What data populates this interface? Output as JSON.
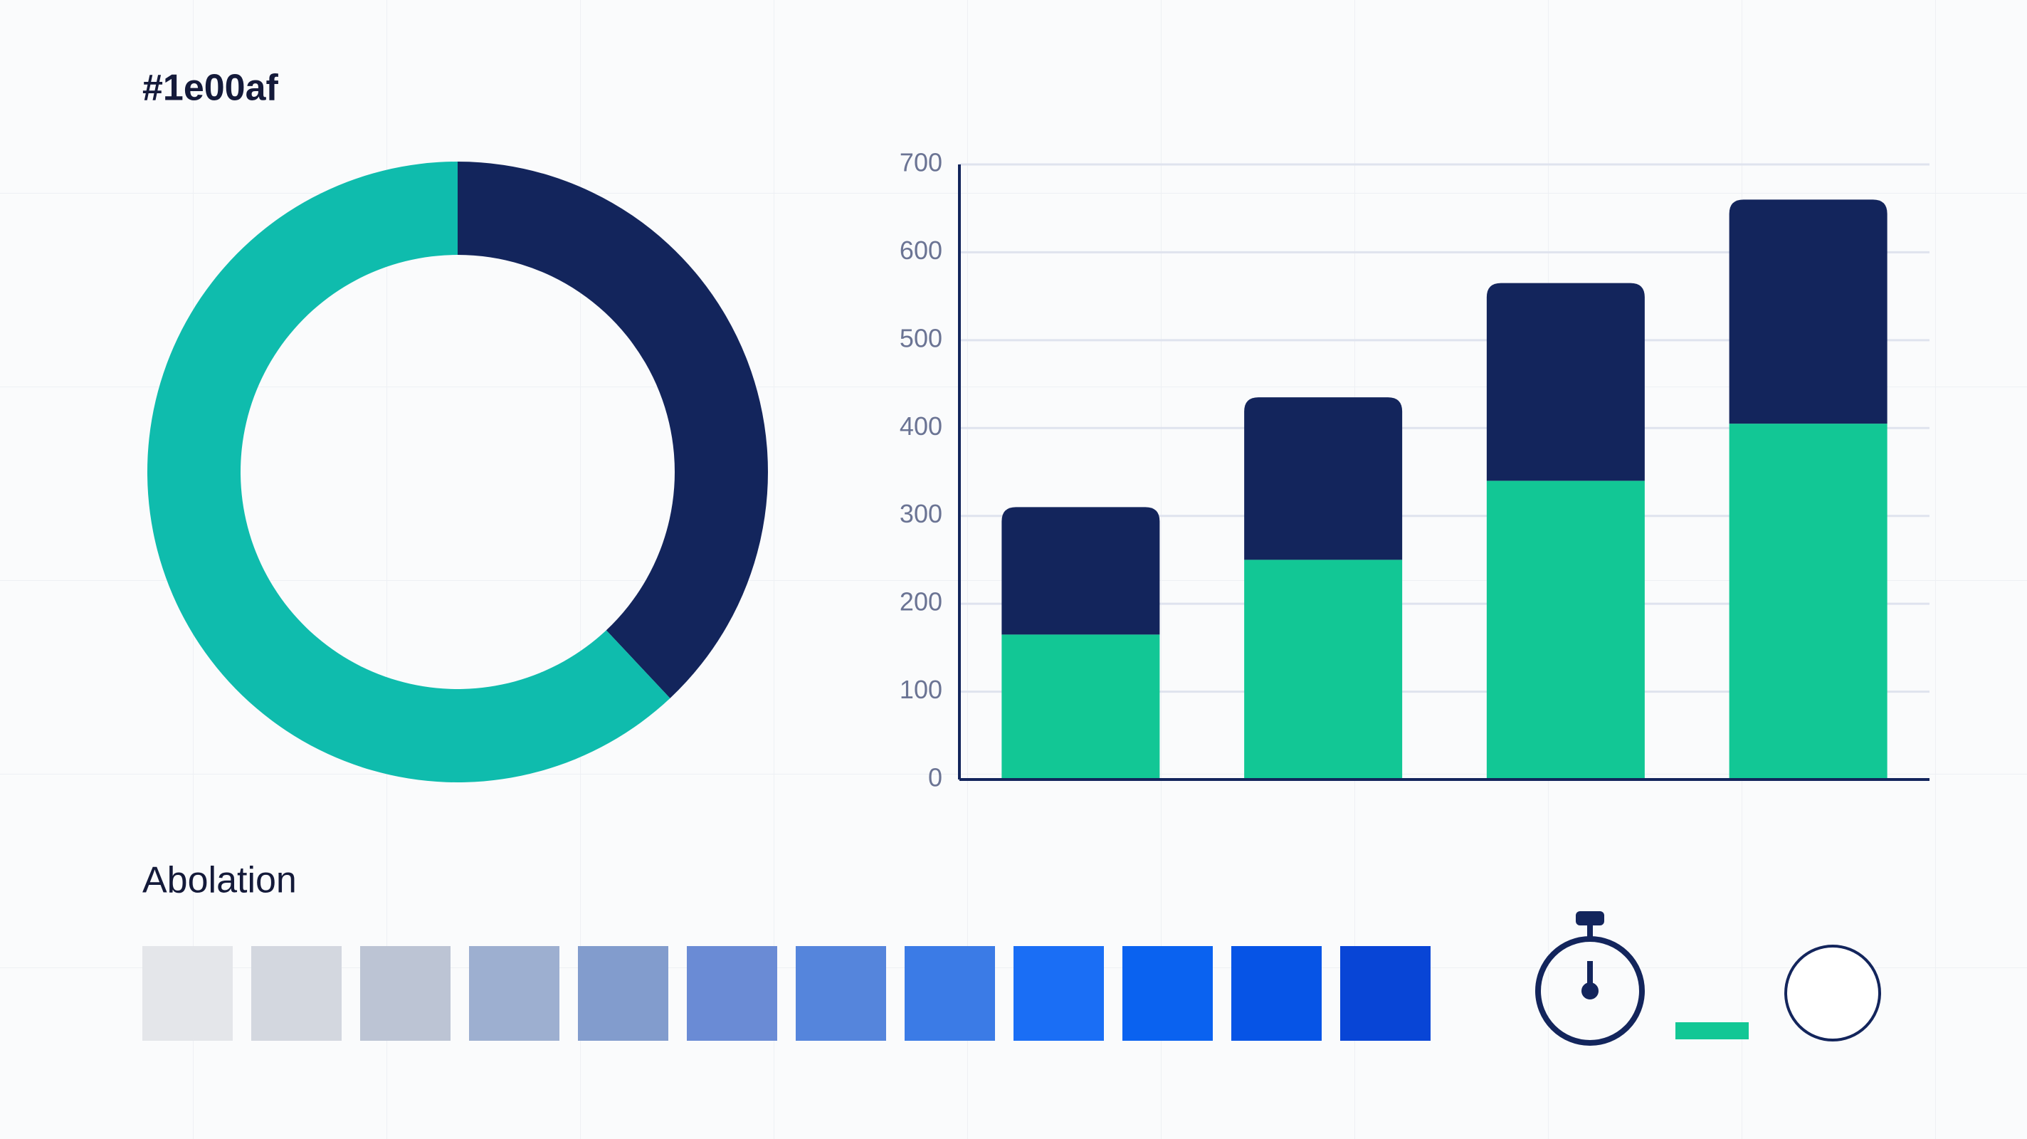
{
  "header": {
    "title": "#1e00af"
  },
  "chart_data": [
    {
      "type": "donut",
      "values": [
        38,
        62
      ],
      "colors": [
        "#13255c",
        "#0fbcad"
      ]
    },
    {
      "type": "stacked-bar",
      "categories": [
        null,
        null,
        null,
        null
      ],
      "series": [
        {
          "color": "#12c795",
          "values": [
            165,
            250,
            340,
            405
          ]
        },
        {
          "color": "#13255c",
          "values": [
            145,
            185,
            225,
            255
          ]
        }
      ],
      "ylim": [
        0,
        700
      ],
      "yticks": [
        0,
        100,
        200,
        300,
        400,
        500,
        600,
        700
      ],
      "grid": true
    }
  ],
  "palette": {
    "title": "Abolation",
    "colors": [
      "#e4e6ea",
      "#d3d7df",
      "#bcc4d4",
      "#9dafd0",
      "#829ccd",
      "#6a8bd5",
      "#5585dc",
      "#3b7be6",
      "#1a6ef5",
      "#0a62f0",
      "#0654e6",
      "#0845d6"
    ]
  }
}
